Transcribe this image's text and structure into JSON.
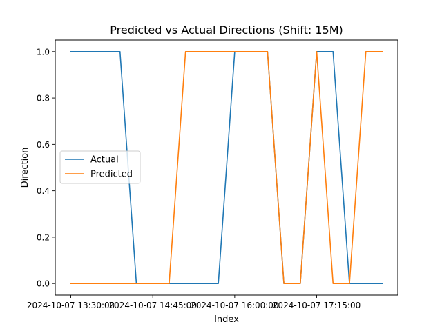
{
  "chart_data": {
    "type": "line",
    "title": "Predicted vs Actual Directions (Shift: 15M)",
    "xlabel": "Index",
    "ylabel": "Direction",
    "x": [
      "2024-10-07 13:30:00",
      "2024-10-07 13:45:00",
      "2024-10-07 14:00:00",
      "2024-10-07 14:15:00",
      "2024-10-07 14:30:00",
      "2024-10-07 14:45:00",
      "2024-10-07 15:00:00",
      "2024-10-07 15:15:00",
      "2024-10-07 15:30:00",
      "2024-10-07 15:45:00",
      "2024-10-07 16:00:00",
      "2024-10-07 16:15:00",
      "2024-10-07 16:30:00",
      "2024-10-07 16:45:00",
      "2024-10-07 17:00:00",
      "2024-10-07 17:15:00",
      "2024-10-07 17:30:00",
      "2024-10-07 17:45:00",
      "2024-10-07 18:00:00",
      "2024-10-07 18:15:00"
    ],
    "xticks": [
      "2024-10-07 13:30:00",
      "2024-10-07 14:45:00",
      "2024-10-07 16:00:00",
      "2024-10-07 17:15:00"
    ],
    "xtick_labels": [
      "2024-10-07 13:30:00",
      "2024-10-07 14:45:00",
      "2024-10-07 16:00:00",
      "2024-10-07 17:15:00"
    ],
    "ylim": [
      -0.05,
      1.05
    ],
    "yticks": [
      0.0,
      0.2,
      0.4,
      0.6,
      0.8,
      1.0
    ],
    "ytick_labels": [
      "0.0",
      "0.2",
      "0.4",
      "0.6",
      "0.8",
      "1.0"
    ],
    "series": [
      {
        "name": "Actual",
        "color": "#1f77b4",
        "values": [
          1,
          1,
          1,
          1,
          0,
          0,
          0,
          0,
          0,
          0,
          1,
          1,
          1,
          0,
          0,
          1,
          1,
          0,
          0,
          0
        ]
      },
      {
        "name": "Predicted",
        "color": "#ff7f0e",
        "values": [
          0,
          0,
          0,
          0,
          0,
          0,
          0,
          1,
          1,
          1,
          1,
          1,
          1,
          0,
          0,
          1,
          0,
          0,
          1,
          1
        ]
      }
    ],
    "legend_position": "center-left",
    "grid": false
  }
}
